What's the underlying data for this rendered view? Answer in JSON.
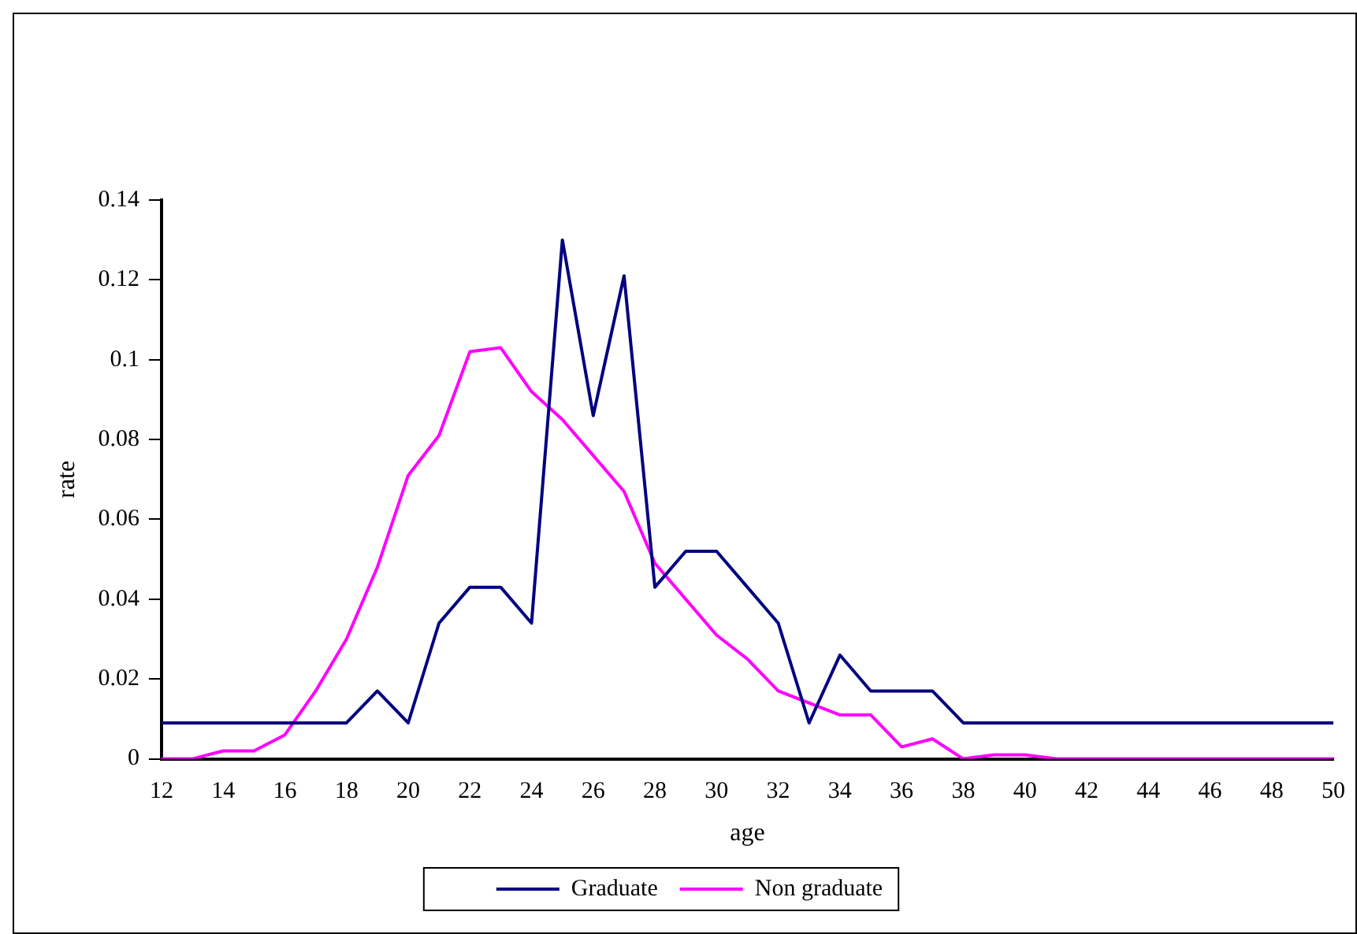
{
  "chart_data": {
    "type": "line",
    "xlabel": "age",
    "ylabel": "rate",
    "categories": [
      "12",
      null,
      "14",
      null,
      "16",
      null,
      "18",
      null,
      "20",
      null,
      "22",
      null,
      "24",
      null,
      "26",
      null,
      "28",
      null,
      "30",
      null,
      "32",
      null,
      "34",
      null,
      "36",
      null,
      "38",
      null,
      "40",
      null,
      "42",
      null,
      "44",
      null,
      "46",
      null,
      "48",
      null,
      "50"
    ],
    "series": [
      {
        "name": "Graduate",
        "color": "#000080",
        "values": [
          0.009,
          0.009,
          0.009,
          0.009,
          0.009,
          0.009,
          0.009,
          0.017,
          0.009,
          0.034,
          0.043,
          0.043,
          0.034,
          0.13,
          0.086,
          0.121,
          0.043,
          0.052,
          0.052,
          0.043,
          0.034,
          0.009,
          0.026,
          0.017,
          0.017,
          0.017,
          0.009,
          0.009,
          0.009,
          0.009,
          0.009,
          0.009,
          0.009,
          0.009,
          0.009,
          0.009,
          0.009,
          0.009,
          0.009
        ]
      },
      {
        "name": "Non graduate",
        "color": "#ff00ff",
        "values": [
          0,
          0,
          0.002,
          0.002,
          0.006,
          0.017,
          0.03,
          0.048,
          0.071,
          0.081,
          0.102,
          0.103,
          0.092,
          0.085,
          0.076,
          0.067,
          0.049,
          0.04,
          0.031,
          0.025,
          0.017,
          0.014,
          0.011,
          0.011,
          0.003,
          0.005,
          0,
          0.001,
          0.001,
          0,
          0,
          0,
          0,
          0,
          0,
          0,
          0,
          0,
          0
        ]
      }
    ],
    "ylim": [
      0,
      0.14
    ],
    "yticks": [
      0,
      0.02,
      0.04,
      0.06,
      0.08,
      0.1,
      0.12,
      0.14
    ],
    "grid": false,
    "legend": "bottom",
    "marker": "none",
    "line_style": "solid"
  }
}
